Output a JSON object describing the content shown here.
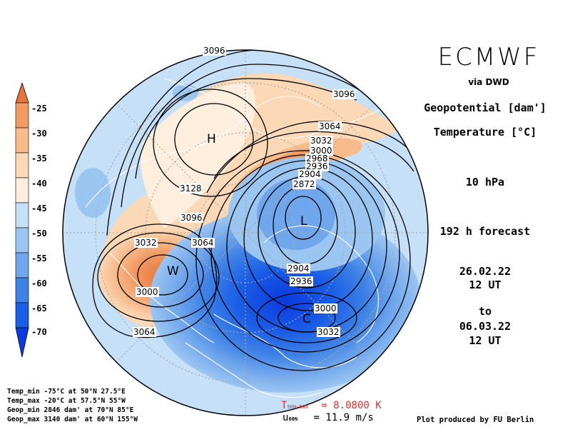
{
  "header": {
    "brand": "ECMWF",
    "via": "via DWD",
    "field_geopotential": "Geopotential [dam']",
    "field_temperature": "Temperature [°C]",
    "level": "10 hPa",
    "forecast": "192 h forecast",
    "init_date": "26.02.22",
    "init_time": "12 UT",
    "to": "to",
    "valid_date": "06.03.22",
    "valid_time": "12 UT"
  },
  "stats": {
    "temp_min": "Temp_min -75°C at 50°N 27.5°E",
    "temp_max": "Temp_max -20°C at 57.5°N 55°W",
    "geop_min": "Geop_min 2846 dam' at 70°N 85°E",
    "geop_max": "Geop_max 3140 dam' at 60°N 155°W"
  },
  "bottom": {
    "t_label": "T",
    "t_sub": "90N-60N",
    "t_value": "= 8.0800 K",
    "u_label": "u",
    "u_sub": "60N",
    "u_value": "= 11.9 m/s",
    "credit": "Plot produced by FU Berlin"
  },
  "legend": {
    "labels": [
      "-25",
      "-30",
      "-35",
      "-40",
      "-45",
      "-50",
      "-55",
      "-60",
      "-65",
      "-70"
    ],
    "colors": [
      "#e8743a",
      "#f29a63",
      "#f7bb8c",
      "#fbd8b6",
      "#fdeedd",
      "#c6e0f8",
      "#9cc6f2",
      "#6fa6ec",
      "#3f82e6",
      "#1a5de6",
      "#0b3ae0"
    ]
  },
  "contour_labels": [
    "3096",
    "3096",
    "3064",
    "3032",
    "3000",
    "2968",
    "2936",
    "2904",
    "2872",
    "3128",
    "3096",
    "3064",
    "3032",
    "3000",
    "3064",
    "2904",
    "2936",
    "3000",
    "3032"
  ],
  "centers": [
    "H",
    "L",
    "W",
    "C"
  ],
  "colors": {
    "warm_peak": "#e8743a",
    "cold_core": "#1a5de6",
    "ambient": "#c6e0f8",
    "t_label_color": "#e83030"
  }
}
